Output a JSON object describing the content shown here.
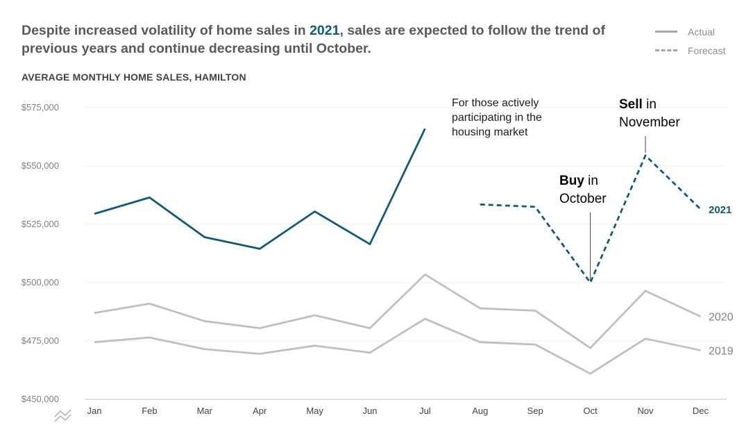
{
  "title": {
    "part1": "Despite increased volatility of home sales in ",
    "highlight": "2021",
    "part2": ", sales are expected to follow the trend of previous years and continue decreasing until October."
  },
  "legend": {
    "actual": "Actual",
    "forecast": "Forecast"
  },
  "colors": {
    "accent": "#0d5b7a",
    "gray": "#bfbfbf"
  },
  "chart_data": {
    "type": "line",
    "title": "AVERAGE MONTHLY HOME SALES, HAMILTON",
    "ylim": [
      450000,
      575000
    ],
    "yticks": [
      450000,
      475000,
      500000,
      525000,
      550000,
      575000
    ],
    "ytick_labels": [
      "$450,000",
      "$475,000",
      "$500,000",
      "$525,000",
      "$550,000",
      "$575,000"
    ],
    "categories": [
      "Jan",
      "Feb",
      "Mar",
      "Apr",
      "May",
      "Jun",
      "Jul",
      "Aug",
      "Sep",
      "Oct",
      "Nov",
      "Dec"
    ],
    "series": [
      {
        "name": "2021",
        "values": [
          529500,
          536500,
          519500,
          514500,
          530500,
          516500,
          566000,
          533500,
          532500,
          500000,
          554500,
          531500
        ],
        "forecast_from_index": 7,
        "color": "#0d5b7a"
      },
      {
        "name": "2020",
        "values": [
          487000,
          491000,
          483500,
          480500,
          486000,
          480500,
          503500,
          489000,
          488000,
          472000,
          496500,
          485500
        ],
        "color": "#bfbfbf"
      },
      {
        "name": "2019",
        "values": [
          474500,
          476500,
          471500,
          469500,
          473000,
          470000,
          484500,
          474500,
          473500,
          461000,
          476000,
          471000
        ],
        "color": "#bfbfbf"
      }
    ],
    "annotations": {
      "participating": [
        "For those actively",
        "participating in the",
        "housing market"
      ],
      "buy_bold": "Buy",
      "buy_rest": " in",
      "buy_line2": "October",
      "sell_bold": "Sell",
      "sell_rest": " in",
      "sell_line2": "November"
    }
  }
}
